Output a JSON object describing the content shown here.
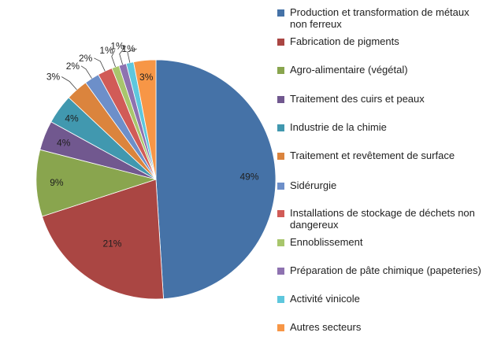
{
  "chart_data": {
    "type": "pie",
    "title": "",
    "unit": "%",
    "colors": {
      "production": "#4572a7",
      "pigments": "#aa4643",
      "agro": "#89a54e",
      "cuirs": "#71588f",
      "chimie": "#4198af",
      "traitement": "#db843d",
      "siderurgie": "#6d8fc9",
      "stockage": "#d15b57",
      "ennoblissement": "#a8c66c",
      "papeteries": "#8e72b0",
      "vinicole": "#5ec7dd",
      "autres": "#f79646"
    },
    "series": [
      {
        "key": "production",
        "label": "Production et transformation  de métaux non ferreux",
        "value": 49,
        "label_text": "49%"
      },
      {
        "key": "pigments",
        "label": "Fabrication de pigments",
        "value": 21,
        "label_text": "21%"
      },
      {
        "key": "agro",
        "label": "Agro-alimentaire (végétal)",
        "value": 9,
        "label_text": "9%"
      },
      {
        "key": "cuirs",
        "label": "Traitement des cuirs et peaux",
        "value": 4,
        "label_text": "4%"
      },
      {
        "key": "chimie",
        "label": "Industrie de la chimie",
        "value": 4,
        "label_text": "4%"
      },
      {
        "key": "traitement",
        "label": "Traitement et revêtement de surface",
        "value": 3,
        "label_text": "3%"
      },
      {
        "key": "siderurgie",
        "label": "Sidérurgie",
        "value": 2,
        "label_text": "2%"
      },
      {
        "key": "stockage",
        "label": "Installations de stockage de déchets non dangereux",
        "value": 2,
        "label_text": "2%"
      },
      {
        "key": "ennoblissement",
        "label": "Ennoblissement",
        "value": 1,
        "label_text": "1%"
      },
      {
        "key": "papeteries",
        "label": "Préparation de pâte chimique (papeteries)",
        "value": 1,
        "label_text": "1%"
      },
      {
        "key": "vinicole",
        "label": "Activité vinicole",
        "value": 1,
        "label_text": "1%"
      },
      {
        "key": "autres",
        "label": "Autres secteurs",
        "value": 3,
        "label_text": "3%"
      }
    ],
    "legend_position": "right"
  }
}
